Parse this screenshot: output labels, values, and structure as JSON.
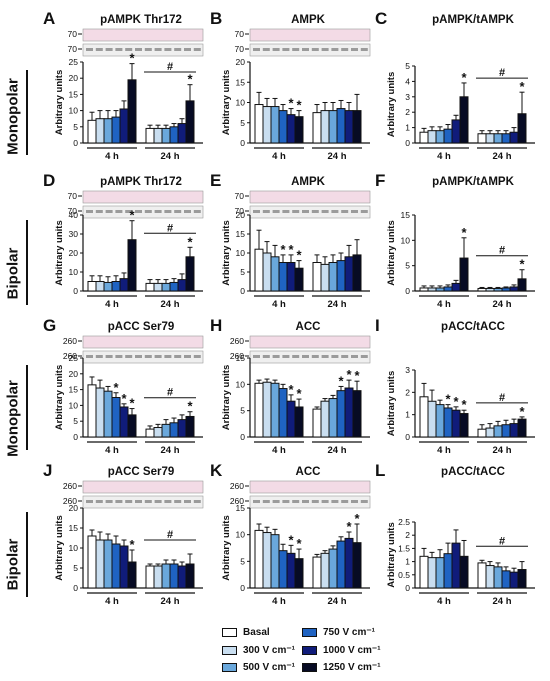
{
  "row_labels": [
    "Monopolar",
    "Bipolar",
    "Monopolar",
    "Bipolar"
  ],
  "group_labels": [
    "4 h",
    "24 h"
  ],
  "ylabel": "Arbitrary units",
  "sig_symbol": "#",
  "star_symbol": "*",
  "legend": [
    {
      "label": "Basal",
      "color": "#ffffff"
    },
    {
      "label": "300 V cm⁻¹",
      "color": "#c9def0"
    },
    {
      "label": "500 V cm⁻¹",
      "color": "#6aa8dc"
    },
    {
      "label": "750 V cm⁻¹",
      "color": "#1f63c2"
    },
    {
      "label": "1000 V cm⁻¹",
      "color": "#101c7a"
    },
    {
      "label": "1250 V cm⁻¹",
      "color": "#070b24"
    }
  ],
  "chart_data": [
    {
      "id": "A",
      "type": "bar",
      "title": "pAMPK Thr172",
      "blot_markers": [
        "70",
        "70"
      ],
      "ylim": [
        0,
        25
      ],
      "yticks": [
        0,
        5,
        10,
        15,
        20,
        25
      ],
      "groups": [
        "4 h",
        "24 h"
      ],
      "values": [
        [
          7,
          7.5,
          7.5,
          8,
          10.5,
          19.5
        ],
        [
          4.5,
          4.5,
          4.5,
          5,
          6,
          13
        ]
      ],
      "errors": [
        [
          2.5,
          2.5,
          2.5,
          2,
          2.5,
          5
        ],
        [
          1,
          1,
          1,
          1,
          1.5,
          5
        ]
      ],
      "stars": [
        [
          false,
          false,
          false,
          false,
          false,
          true
        ],
        [
          false,
          false,
          false,
          false,
          false,
          true
        ]
      ],
      "hash_group": 1
    },
    {
      "id": "B",
      "type": "bar",
      "title": "AMPK",
      "blot_markers": [
        "70",
        "70"
      ],
      "ylim": [
        0,
        20
      ],
      "yticks": [
        0,
        5,
        10,
        15,
        20
      ],
      "groups": [
        "4 h",
        "24 h"
      ],
      "values": [
        [
          9.5,
          9,
          9,
          8,
          7,
          6.5
        ],
        [
          7.5,
          8,
          8,
          8.5,
          8,
          8
        ]
      ],
      "errors": [
        [
          3,
          2,
          2,
          1.5,
          1.5,
          1.5
        ],
        [
          2,
          2,
          2,
          2,
          2,
          4
        ]
      ],
      "stars": [
        [
          false,
          false,
          false,
          false,
          true,
          true
        ],
        [
          false,
          false,
          false,
          false,
          false,
          false
        ]
      ],
      "hash_group": null
    },
    {
      "id": "C",
      "type": "bar",
      "title": "pAMPK/tAMPK",
      "blot_markers": [],
      "ylim": [
        0,
        5
      ],
      "yticks": [
        0,
        1,
        2,
        3,
        4,
        5
      ],
      "groups": [
        "4 h",
        "24 h"
      ],
      "values": [
        [
          0.7,
          0.8,
          0.8,
          0.9,
          1.5,
          3
        ],
        [
          0.6,
          0.6,
          0.6,
          0.6,
          0.7,
          1.9
        ]
      ],
      "errors": [
        [
          0.25,
          0.25,
          0.25,
          0.3,
          0.3,
          0.9
        ],
        [
          0.2,
          0.2,
          0.2,
          0.2,
          0.3,
          1.4
        ]
      ],
      "stars": [
        [
          false,
          false,
          false,
          false,
          false,
          true
        ],
        [
          false,
          false,
          false,
          false,
          false,
          true
        ]
      ],
      "hash_group": 1
    },
    {
      "id": "D",
      "type": "bar",
      "title": "pAMPK Thr172",
      "blot_markers": [
        "70",
        "70"
      ],
      "ylim": [
        0,
        40
      ],
      "yticks": [
        0,
        10,
        20,
        30,
        40
      ],
      "groups": [
        "4 h",
        "24 h"
      ],
      "values": [
        [
          5,
          5,
          4.5,
          5,
          6.5,
          27
        ],
        [
          4,
          4,
          4,
          4.5,
          6,
          18
        ]
      ],
      "errors": [
        [
          3,
          3,
          3,
          3,
          3,
          10
        ],
        [
          2,
          2,
          2,
          2,
          3,
          5
        ]
      ],
      "stars": [
        [
          false,
          false,
          false,
          false,
          false,
          true
        ],
        [
          false,
          false,
          false,
          false,
          false,
          true
        ]
      ],
      "hash_group": 1
    },
    {
      "id": "E",
      "type": "bar",
      "title": "AMPK",
      "blot_markers": [
        "70",
        "70"
      ],
      "ylim": [
        0,
        20
      ],
      "yticks": [
        0,
        5,
        10,
        15,
        20
      ],
      "groups": [
        "4 h",
        "24 h"
      ],
      "values": [
        [
          11,
          10,
          9,
          7.5,
          7.5,
          6
        ],
        [
          7.5,
          7,
          7.5,
          8,
          9,
          9.5
        ]
      ],
      "errors": [
        [
          5,
          3,
          3,
          2,
          2,
          2
        ],
        [
          2,
          2,
          2,
          2,
          3,
          4
        ]
      ],
      "stars": [
        [
          false,
          false,
          false,
          true,
          true,
          true
        ],
        [
          false,
          false,
          false,
          false,
          false,
          false
        ]
      ],
      "hash_group": null
    },
    {
      "id": "F",
      "type": "bar",
      "title": "pAMPK/tAMPK",
      "blot_markers": [],
      "ylim": [
        0,
        15
      ],
      "yticks": [
        0,
        5,
        10,
        15
      ],
      "groups": [
        "4 h",
        "24 h"
      ],
      "values": [
        [
          0.6,
          0.6,
          0.6,
          0.8,
          1.5,
          6.5
        ],
        [
          0.5,
          0.5,
          0.5,
          0.6,
          0.8,
          2.4
        ]
      ],
      "errors": [
        [
          0.4,
          0.4,
          0.4,
          0.4,
          0.6,
          4
        ],
        [
          0.2,
          0.2,
          0.2,
          0.2,
          0.4,
          1.8
        ]
      ],
      "stars": [
        [
          false,
          false,
          false,
          false,
          false,
          true
        ],
        [
          false,
          false,
          false,
          false,
          false,
          true
        ]
      ],
      "hash_group": 1
    },
    {
      "id": "G",
      "type": "bar",
      "title": "pACC Ser79",
      "blot_markers": [
        "260",
        "260"
      ],
      "ylim": [
        0,
        25
      ],
      "yticks": [
        0,
        5,
        10,
        15,
        20,
        25
      ],
      "groups": [
        "4 h",
        "24 h"
      ],
      "values": [
        [
          16.5,
          15.5,
          14.5,
          12.5,
          9.5,
          7
        ],
        [
          2.5,
          3,
          4,
          4.5,
          5.5,
          6.5
        ]
      ],
      "errors": [
        [
          2.5,
          2.5,
          1.5,
          1.5,
          1,
          2
        ],
        [
          1,
          1,
          1.5,
          1.5,
          1.5,
          1.5
        ]
      ],
      "stars": [
        [
          false,
          false,
          false,
          true,
          true,
          true
        ],
        [
          false,
          false,
          false,
          false,
          false,
          true
        ]
      ],
      "hash_group": 1
    },
    {
      "id": "H",
      "type": "bar",
      "title": "ACC",
      "blot_markers": [
        "260",
        "260"
      ],
      "ylim": [
        0,
        15
      ],
      "yticks": [
        0,
        5,
        10,
        15
      ],
      "groups": [
        "4 h",
        "24 h"
      ],
      "values": [
        [
          10.2,
          10.4,
          10.2,
          9.2,
          6.8,
          5.7
        ],
        [
          5.3,
          6.8,
          7.3,
          8.8,
          9.3,
          8.8
        ]
      ],
      "errors": [
        [
          0.6,
          0.6,
          0.6,
          0.8,
          1.2,
          1.5
        ],
        [
          0.4,
          0.5,
          0.6,
          0.8,
          1.5,
          1.8
        ]
      ],
      "stars": [
        [
          false,
          false,
          false,
          false,
          true,
          true
        ],
        [
          false,
          false,
          false,
          true,
          true,
          true
        ]
      ],
      "hash_group": null
    },
    {
      "id": "I",
      "type": "bar",
      "title": "pACC/tACC",
      "blot_markers": [],
      "ylim": [
        0,
        3
      ],
      "yticks": [
        0,
        1,
        2,
        3
      ],
      "groups": [
        "4 h",
        "24 h"
      ],
      "values": [
        [
          1.8,
          1.6,
          1.45,
          1.3,
          1.2,
          1.05
        ],
        [
          0.35,
          0.4,
          0.5,
          0.55,
          0.6,
          0.8
        ]
      ],
      "errors": [
        [
          0.6,
          0.5,
          0.2,
          0.15,
          0.15,
          0.15
        ],
        [
          0.2,
          0.2,
          0.2,
          0.2,
          0.2,
          0.1
        ]
      ],
      "stars": [
        [
          false,
          false,
          false,
          true,
          true,
          true
        ],
        [
          false,
          false,
          false,
          false,
          false,
          true
        ]
      ],
      "hash_group": 1
    },
    {
      "id": "J",
      "type": "bar",
      "title": "pACC Ser79",
      "blot_markers": [
        "260",
        "260"
      ],
      "ylim": [
        0,
        20
      ],
      "yticks": [
        0,
        5,
        10,
        15,
        20
      ],
      "groups": [
        "4 h",
        "24 h"
      ],
      "values": [
        [
          13,
          12,
          12,
          11,
          10.5,
          6.5
        ],
        [
          5.5,
          5.5,
          6,
          6,
          5.5,
          6
        ]
      ],
      "errors": [
        [
          1.5,
          2,
          1.5,
          2,
          1.5,
          3
        ],
        [
          0.5,
          0.5,
          1,
          1,
          1,
          2.5
        ]
      ],
      "stars": [
        [
          false,
          false,
          false,
          false,
          false,
          true
        ],
        [
          false,
          false,
          false,
          false,
          false,
          false
        ]
      ],
      "hash_group": 1
    },
    {
      "id": "K",
      "type": "bar",
      "title": "ACC",
      "blot_markers": [
        "260",
        "260"
      ],
      "ylim": [
        0,
        15
      ],
      "yticks": [
        0,
        5,
        10,
        15
      ],
      "groups": [
        "4 h",
        "24 h"
      ],
      "values": [
        [
          10.8,
          10.4,
          10,
          7,
          6.5,
          5.5
        ],
        [
          5.8,
          6.5,
          7.3,
          8.8,
          9.3,
          8.5
        ]
      ],
      "errors": [
        [
          1.2,
          1,
          1,
          1.2,
          1.5,
          1.8
        ],
        [
          0.5,
          0.5,
          0.6,
          0.8,
          1.2,
          3.5
        ]
      ],
      "stars": [
        [
          false,
          false,
          false,
          false,
          true,
          true
        ],
        [
          false,
          false,
          false,
          false,
          true,
          true
        ]
      ],
      "hash_group": null
    },
    {
      "id": "L",
      "type": "bar",
      "title": "pACC/tACC",
      "blot_markers": [],
      "ylim": [
        0,
        2.5
      ],
      "yticks": [
        0.0,
        0.5,
        1.0,
        1.5,
        2.0,
        2.5
      ],
      "groups": [
        "4 h",
        "24 h"
      ],
      "values": [
        [
          1.2,
          1.15,
          1.15,
          1.3,
          1.7,
          1.2
        ],
        [
          0.95,
          0.85,
          0.8,
          0.65,
          0.6,
          0.7
        ]
      ],
      "errors": [
        [
          0.3,
          0.2,
          0.3,
          0.4,
          0.5,
          0.6
        ],
        [
          0.1,
          0.15,
          0.15,
          0.15,
          0.15,
          0.3
        ]
      ],
      "stars": [
        [
          false,
          false,
          false,
          false,
          false,
          false
        ],
        [
          false,
          false,
          false,
          false,
          false,
          false
        ]
      ],
      "hash_group": 1
    }
  ]
}
